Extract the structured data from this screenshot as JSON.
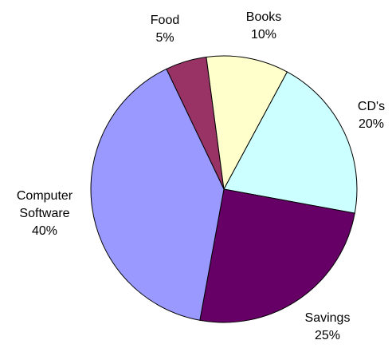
{
  "chart_data": {
    "type": "pie",
    "categories": [
      "Food",
      "Books",
      "CD's",
      "Savings",
      "Computer Software"
    ],
    "values": [
      5,
      10,
      20,
      25,
      40
    ],
    "value_labels": [
      "5%",
      "10%",
      "20%",
      "25%",
      "40%"
    ],
    "colors": [
      "#993366",
      "#ffffcc",
      "#ccffff",
      "#660066",
      "#9999ff"
    ]
  }
}
